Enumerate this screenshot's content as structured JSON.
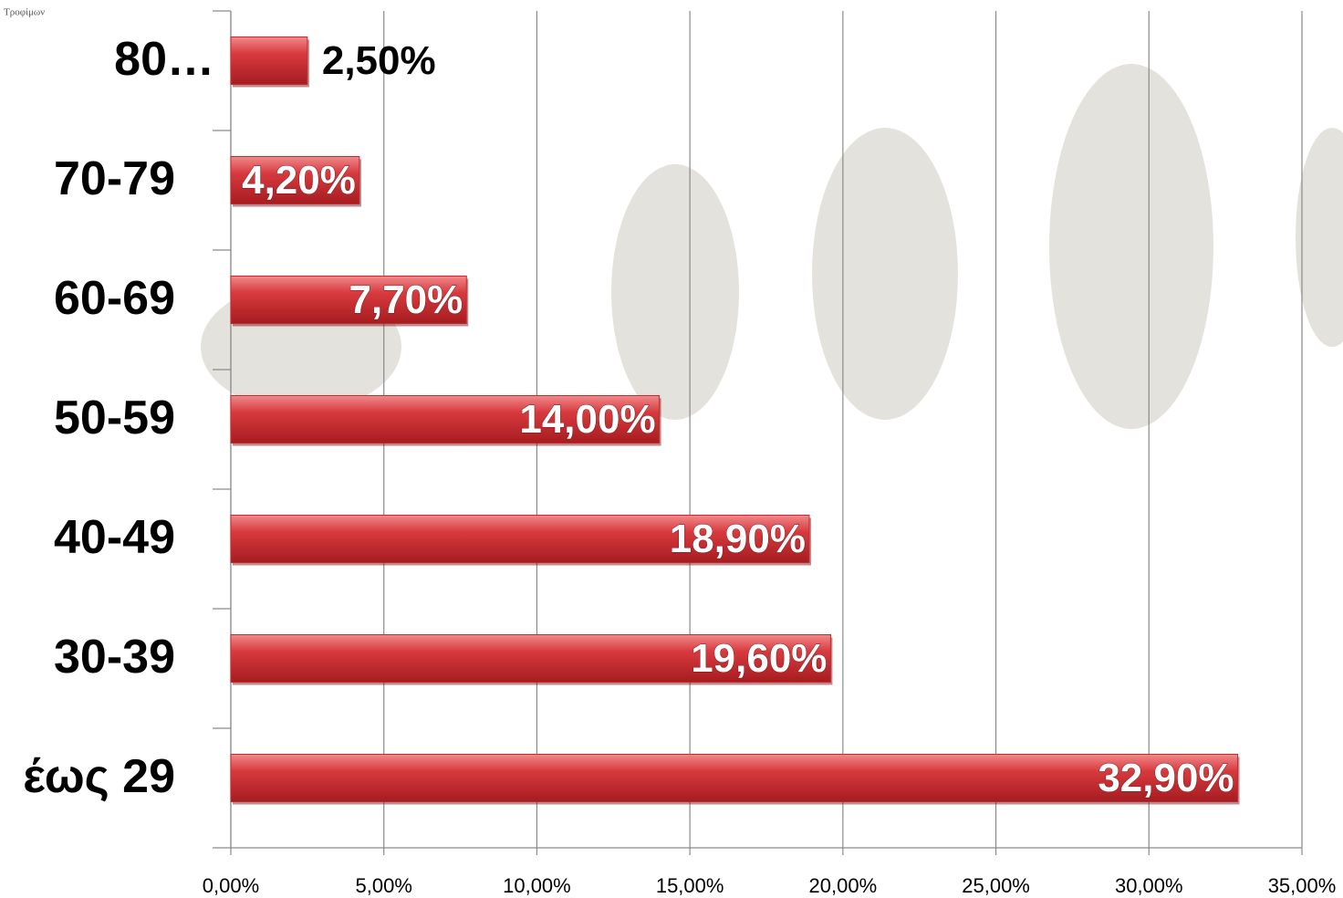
{
  "logo_text": "Τροφίμων",
  "chart_data": {
    "type": "barh",
    "categories": [
      "80…",
      "70-79",
      "60-69",
      "50-59",
      "40-49",
      "30-39",
      "έως 29"
    ],
    "values": [
      2.5,
      4.2,
      7.7,
      14.0,
      18.9,
      19.6,
      32.9
    ],
    "value_labels": [
      "2,50%",
      "4,20%",
      "7,70%",
      "14,00%",
      "18,90%",
      "19,60%",
      "32,90%"
    ],
    "color": "#c9282d",
    "xlim": [
      0,
      35
    ],
    "xticks": [
      {
        "value": 0,
        "label": "0,00%"
      },
      {
        "value": 5,
        "label": "5,00%"
      },
      {
        "value": 10,
        "label": "10,00%"
      },
      {
        "value": 15,
        "label": "15,00%"
      },
      {
        "value": 20,
        "label": "20,00%"
      },
      {
        "value": 25,
        "label": "25,00%"
      },
      {
        "value": 30,
        "label": "30,00%"
      },
      {
        "value": 35,
        "label": "35,00%"
      }
    ],
    "grid": true
  }
}
